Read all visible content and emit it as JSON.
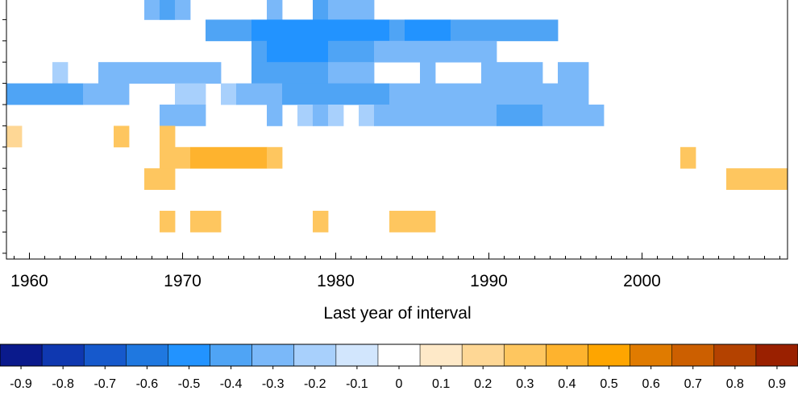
{
  "chart_data": {
    "type": "heatmap",
    "xlabel": "Last year of interval",
    "ylabel": "",
    "x_ticks": [
      "1960",
      "1970",
      "1980",
      "1990",
      "2000"
    ],
    "x_tick_values": [
      1960,
      1970,
      1980,
      1990,
      2000
    ],
    "xlim": [
      1958.5,
      2009.5
    ],
    "row_count": 12,
    "colorbar": {
      "labels": [
        "-0.9",
        "-0.8",
        "-0.7",
        "-0.6",
        "-0.5",
        "-0.4",
        "-0.3",
        "-0.2",
        "-0.1",
        "0",
        "0.1",
        "0.2",
        "0.3",
        "0.4",
        "0.5",
        "0.6",
        "0.7",
        "0.8",
        "0.9"
      ],
      "colors": [
        "#0a1a8c",
        "#0f38b0",
        "#1659cc",
        "#1f78e0",
        "#2293ff",
        "#4fa4f5",
        "#7ab8f9",
        "#a8d0fc",
        "#d2e6fd",
        "#ffffff",
        "#fee9c8",
        "#fed795",
        "#fec65f",
        "#feb32e",
        "#fea500",
        "#e07b00",
        "#cc5f00",
        "#b44200",
        "#9a2000"
      ]
    },
    "cells": [
      {
        "row": 0,
        "x0": 1968,
        "x1": 1968,
        "value": -0.3
      },
      {
        "row": 0,
        "x0": 1969,
        "x1": 1969,
        "value": -0.4
      },
      {
        "row": 0,
        "x0": 1970,
        "x1": 1970,
        "value": -0.3
      },
      {
        "row": 0,
        "x0": 1976,
        "x1": 1976,
        "value": -0.3
      },
      {
        "row": 0,
        "x0": 1979,
        "x1": 1979,
        "value": -0.4
      },
      {
        "row": 0,
        "x0": 1980,
        "x1": 1982,
        "value": -0.3
      },
      {
        "row": 1,
        "x0": 1972,
        "x1": 1974,
        "value": -0.4
      },
      {
        "row": 1,
        "x0": 1975,
        "x1": 1983,
        "value": -0.5
      },
      {
        "row": 1,
        "x0": 1984,
        "x1": 1984,
        "value": -0.4
      },
      {
        "row": 1,
        "x0": 1985,
        "x1": 1987,
        "value": -0.5
      },
      {
        "row": 1,
        "x0": 1988,
        "x1": 1994,
        "value": -0.4
      },
      {
        "row": 2,
        "x0": 1975,
        "x1": 1975,
        "value": -0.4
      },
      {
        "row": 2,
        "x0": 1976,
        "x1": 1976,
        "value": -0.5
      },
      {
        "row": 2,
        "x0": 1977,
        "x1": 1979,
        "value": -0.5
      },
      {
        "row": 2,
        "x0": 1980,
        "x1": 1982,
        "value": -0.4
      },
      {
        "row": 2,
        "x0": 1983,
        "x1": 1990,
        "value": -0.3
      },
      {
        "row": 3,
        "x0": 1962,
        "x1": 1962,
        "value": -0.2
      },
      {
        "row": 3,
        "x0": 1965,
        "x1": 1972,
        "value": -0.3
      },
      {
        "row": 3,
        "x0": 1975,
        "x1": 1979,
        "value": -0.4
      },
      {
        "row": 3,
        "x0": 1980,
        "x1": 1982,
        "value": -0.3
      },
      {
        "row": 3,
        "x0": 1986,
        "x1": 1986,
        "value": -0.3
      },
      {
        "row": 3,
        "x0": 1990,
        "x1": 1993,
        "value": -0.3
      },
      {
        "row": 3,
        "x0": 1995,
        "x1": 1996,
        "value": -0.3
      },
      {
        "row": 4,
        "x0": 1959,
        "x1": 1963,
        "value": -0.4
      },
      {
        "row": 4,
        "x0": 1964,
        "x1": 1966,
        "value": -0.3
      },
      {
        "row": 4,
        "x0": 1970,
        "x1": 1971,
        "value": -0.2
      },
      {
        "row": 4,
        "x0": 1973,
        "x1": 1973,
        "value": -0.2
      },
      {
        "row": 4,
        "x0": 1974,
        "x1": 1976,
        "value": -0.3
      },
      {
        "row": 4,
        "x0": 1977,
        "x1": 1983,
        "value": -0.4
      },
      {
        "row": 4,
        "x0": 1984,
        "x1": 1996,
        "value": -0.3
      },
      {
        "row": 5,
        "x0": 1969,
        "x1": 1971,
        "value": -0.3
      },
      {
        "row": 5,
        "x0": 1976,
        "x1": 1976,
        "value": -0.3
      },
      {
        "row": 5,
        "x0": 1978,
        "x1": 1978,
        "value": -0.2
      },
      {
        "row": 5,
        "x0": 1979,
        "x1": 1979,
        "value": -0.3
      },
      {
        "row": 5,
        "x0": 1980,
        "x1": 1980,
        "value": -0.2
      },
      {
        "row": 5,
        "x0": 1982,
        "x1": 1982,
        "value": -0.2
      },
      {
        "row": 5,
        "x0": 1983,
        "x1": 1990,
        "value": -0.3
      },
      {
        "row": 5,
        "x0": 1991,
        "x1": 1993,
        "value": -0.4
      },
      {
        "row": 5,
        "x0": 1994,
        "x1": 1997,
        "value": -0.3
      },
      {
        "row": 6,
        "x0": 1959,
        "x1": 1959,
        "value": 0.2
      },
      {
        "row": 6,
        "x0": 1966,
        "x1": 1966,
        "value": 0.3
      },
      {
        "row": 6,
        "x0": 1969,
        "x1": 1969,
        "value": 0.3
      },
      {
        "row": 7,
        "x0": 1969,
        "x1": 1970,
        "value": 0.3
      },
      {
        "row": 7,
        "x0": 1971,
        "x1": 1975,
        "value": 0.4
      },
      {
        "row": 7,
        "x0": 1976,
        "x1": 1976,
        "value": 0.3
      },
      {
        "row": 7,
        "x0": 2003,
        "x1": 2003,
        "value": 0.3
      },
      {
        "row": 8,
        "x0": 1968,
        "x1": 1969,
        "value": 0.3
      },
      {
        "row": 8,
        "x0": 2006,
        "x1": 2009,
        "value": 0.3
      },
      {
        "row": 10,
        "x0": 1969,
        "x1": 1969,
        "value": 0.3
      },
      {
        "row": 10,
        "x0": 1971,
        "x1": 1972,
        "value": 0.3
      },
      {
        "row": 10,
        "x0": 1979,
        "x1": 1979,
        "value": 0.3
      },
      {
        "row": 10,
        "x0": 1984,
        "x1": 1986,
        "value": 0.3
      }
    ]
  }
}
